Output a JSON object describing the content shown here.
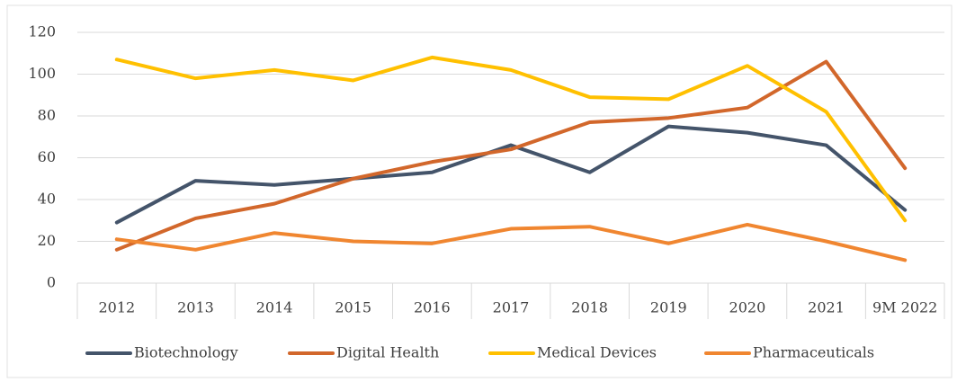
{
  "chart_data": {
    "type": "line",
    "categories": [
      "2012",
      "2013",
      "2014",
      "2015",
      "2016",
      "2017",
      "2018",
      "2019",
      "2020",
      "2021",
      "9M 2022"
    ],
    "series": [
      {
        "name": "Biotechnology",
        "color": "#44546a",
        "values": [
          29,
          49,
          47,
          50,
          53,
          66,
          53,
          75,
          72,
          66,
          35
        ]
      },
      {
        "name": "Digital Health",
        "color": "#d2672b",
        "values": [
          16,
          31,
          38,
          50,
          58,
          64,
          77,
          79,
          84,
          106,
          55
        ]
      },
      {
        "name": "Medical Devices",
        "color": "#ffc000",
        "values": [
          107,
          98,
          102,
          97,
          108,
          102,
          89,
          88,
          104,
          82,
          30
        ]
      },
      {
        "name": "Pharmaceuticals",
        "color": "#f08630",
        "values": [
          21,
          16,
          24,
          20,
          19,
          26,
          27,
          19,
          28,
          20,
          11
        ]
      }
    ],
    "ylim": [
      0,
      120
    ],
    "yticks": [
      0,
      20,
      40,
      60,
      80,
      100,
      120
    ],
    "grid": true,
    "legend": "bottom"
  }
}
